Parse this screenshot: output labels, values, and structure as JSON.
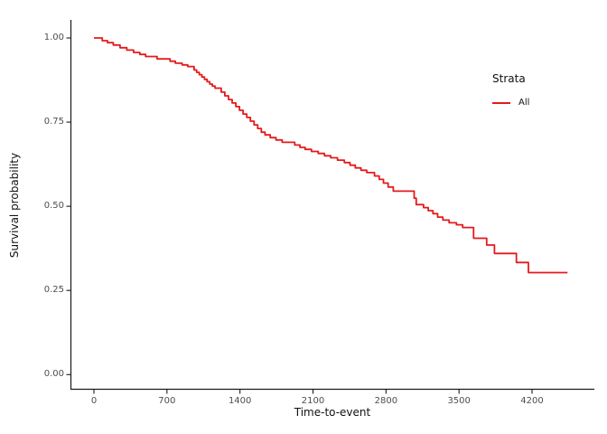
{
  "figure": {
    "background": "#ffffff",
    "axis_line_color": "#1a1a1a",
    "tick_label_color": "#4d4d4d"
  },
  "chart_data": {
    "type": "line",
    "subtype": "kaplan-meier-step-curve",
    "title": "",
    "xlabel": "Time-to-event",
    "ylabel": "Survival probability",
    "x_ticks": [
      0,
      700,
      1400,
      2100,
      2800,
      3500,
      4200
    ],
    "y_ticks": [
      1.0,
      0.75,
      0.5,
      0.25,
      0.0
    ],
    "xlim": [
      0,
      4700
    ],
    "ylim": [
      0.0,
      1.05
    ],
    "grid": false,
    "legend": {
      "title": "Strata",
      "position": "right",
      "entries": [
        {
          "label": "All",
          "color": "#e41a1c"
        }
      ]
    },
    "series": [
      {
        "name": "All",
        "color": "#e41a1c",
        "end_time": 4540,
        "points": [
          [
            0,
            1.0
          ],
          [
            80,
            0.992
          ],
          [
            130,
            0.986
          ],
          [
            185,
            0.979
          ],
          [
            250,
            0.971
          ],
          [
            315,
            0.964
          ],
          [
            380,
            0.957
          ],
          [
            440,
            0.951
          ],
          [
            495,
            0.945
          ],
          [
            605,
            0.938
          ],
          [
            730,
            0.931
          ],
          [
            780,
            0.925
          ],
          [
            845,
            0.92
          ],
          [
            900,
            0.915
          ],
          [
            960,
            0.905
          ],
          [
            985,
            0.898
          ],
          [
            1010,
            0.891
          ],
          [
            1035,
            0.884
          ],
          [
            1060,
            0.877
          ],
          [
            1085,
            0.87
          ],
          [
            1110,
            0.863
          ],
          [
            1135,
            0.857
          ],
          [
            1160,
            0.851
          ],
          [
            1220,
            0.839
          ],
          [
            1255,
            0.828
          ],
          [
            1290,
            0.817
          ],
          [
            1325,
            0.807
          ],
          [
            1360,
            0.796
          ],
          [
            1395,
            0.785
          ],
          [
            1430,
            0.774
          ],
          [
            1465,
            0.764
          ],
          [
            1500,
            0.753
          ],
          [
            1535,
            0.742
          ],
          [
            1570,
            0.731
          ],
          [
            1605,
            0.72
          ],
          [
            1640,
            0.712
          ],
          [
            1690,
            0.704
          ],
          [
            1745,
            0.697
          ],
          [
            1805,
            0.69
          ],
          [
            1925,
            0.682
          ],
          [
            1975,
            0.675
          ],
          [
            2025,
            0.669
          ],
          [
            2085,
            0.663
          ],
          [
            2150,
            0.657
          ],
          [
            2210,
            0.65
          ],
          [
            2270,
            0.644
          ],
          [
            2335,
            0.637
          ],
          [
            2400,
            0.63
          ],
          [
            2455,
            0.622
          ],
          [
            2505,
            0.614
          ],
          [
            2560,
            0.607
          ],
          [
            2615,
            0.6
          ],
          [
            2690,
            0.59
          ],
          [
            2735,
            0.58
          ],
          [
            2775,
            0.569
          ],
          [
            2820,
            0.557
          ],
          [
            2870,
            0.545
          ],
          [
            3070,
            0.524
          ],
          [
            3090,
            0.505
          ],
          [
            3160,
            0.496
          ],
          [
            3205,
            0.487
          ],
          [
            3250,
            0.478
          ],
          [
            3295,
            0.468
          ],
          [
            3345,
            0.459
          ],
          [
            3405,
            0.451
          ],
          [
            3475,
            0.445
          ],
          [
            3535,
            0.437
          ],
          [
            3640,
            0.405
          ],
          [
            3765,
            0.385
          ],
          [
            3840,
            0.36
          ],
          [
            4050,
            0.333
          ],
          [
            4165,
            0.303
          ]
        ]
      }
    ]
  }
}
